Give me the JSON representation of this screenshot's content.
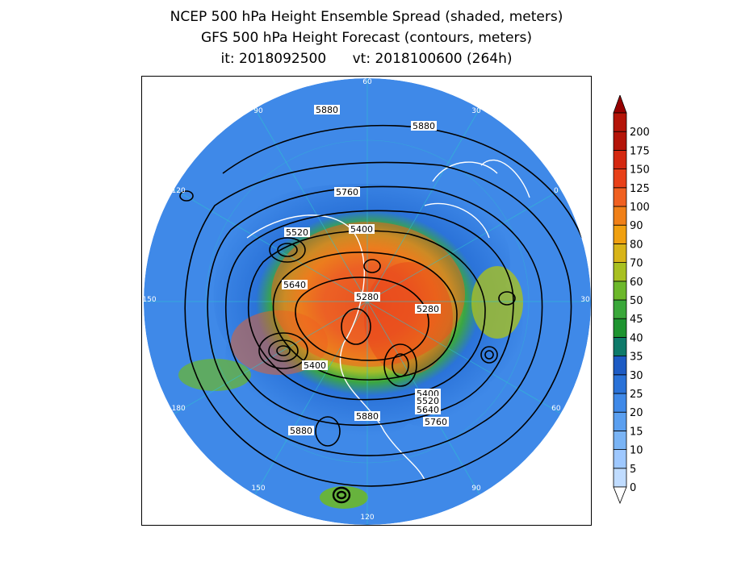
{
  "title": {
    "line1": "NCEP 500 hPa Height Ensemble Spread (shaded, meters)",
    "line2": "GFS 500 hPa Height Forecast (contours, meters)",
    "line3": "it: 2018092500      vt: 2018100600 (264h)"
  },
  "colorbar": {
    "levels": [
      "0",
      "5",
      "10",
      "15",
      "20",
      "25",
      "30",
      "35",
      "40",
      "45",
      "50",
      "60",
      "70",
      "80",
      "90",
      "100",
      "125",
      "150",
      "175",
      "200"
    ],
    "colors": [
      "#c0dcff",
      "#9ec8ff",
      "#7ab4f5",
      "#5a9ff0",
      "#3f89e8",
      "#2a72d8",
      "#1d5bc4",
      "#0e7a6a",
      "#1e9430",
      "#3aa83a",
      "#6cb82a",
      "#a8c020",
      "#d8b418",
      "#f0a010",
      "#f08018",
      "#f06020",
      "#e84018",
      "#d42810",
      "#b41408",
      "#960000"
    ]
  },
  "contour_labels": [
    {
      "text": "5880",
      "id": "top-left"
    },
    {
      "text": "5880",
      "id": "top-right"
    },
    {
      "text": "5760",
      "id": "north"
    },
    {
      "text": "5520",
      "id": "nw"
    },
    {
      "text": "5400",
      "id": "north-center"
    },
    {
      "text": "5640",
      "id": "west"
    },
    {
      "text": "5280",
      "id": "center"
    },
    {
      "text": "5280",
      "id": "east"
    },
    {
      "text": "5400",
      "id": "sw"
    },
    {
      "text": "5400",
      "id": "se-1"
    },
    {
      "text": "5520",
      "id": "se-2"
    },
    {
      "text": "5640",
      "id": "se-3"
    },
    {
      "text": "5760",
      "id": "se-4"
    },
    {
      "text": "5880",
      "id": "south"
    },
    {
      "text": "5880",
      "id": "southwest"
    }
  ],
  "longitude_labels": [
    "60",
    "30",
    "0",
    "30",
    "60",
    "90",
    "120",
    "150",
    "180",
    "150",
    "120",
    "90"
  ]
}
